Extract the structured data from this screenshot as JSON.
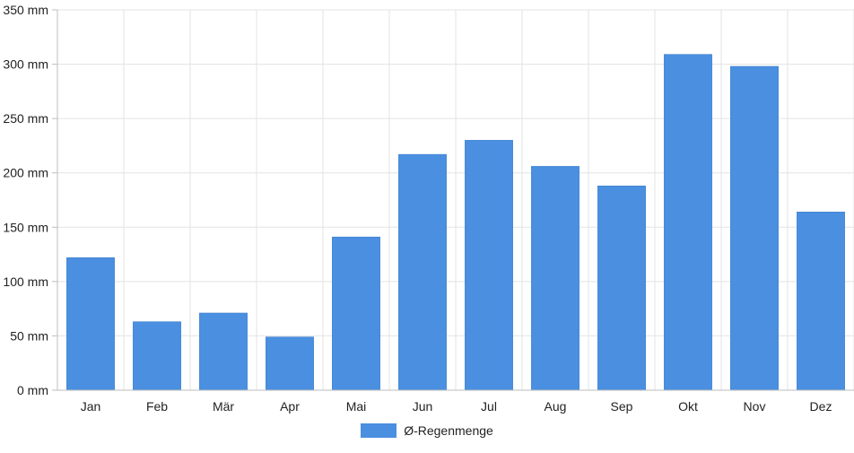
{
  "colors": {
    "bar": "#4a8fe0",
    "grid": "#e3e3e3",
    "axis": "#bdbdbd",
    "text": "#222222"
  },
  "legend": {
    "label": "Ø-Regenmenge"
  },
  "chart_data": {
    "type": "bar",
    "categories": [
      "Jan",
      "Feb",
      "Mär",
      "Apr",
      "Mai",
      "Jun",
      "Jul",
      "Aug",
      "Sep",
      "Okt",
      "Nov",
      "Dez"
    ],
    "series": [
      {
        "name": "Ø-Regenmenge",
        "values": [
          122,
          63,
          71,
          49,
          141,
          217,
          230,
          206,
          188,
          309,
          298,
          164
        ]
      }
    ],
    "y_ticks": [
      "0 mm",
      "50 mm",
      "100 mm",
      "150 mm",
      "200 mm",
      "250 mm",
      "300 mm",
      "350 mm"
    ],
    "ylim": [
      0,
      350
    ],
    "y_step": 50,
    "grid": true,
    "legend_position": "bottom-center"
  }
}
